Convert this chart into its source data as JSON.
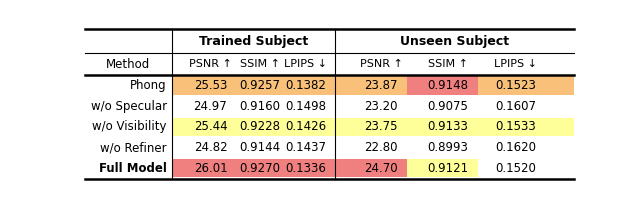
{
  "methods": [
    "Phong",
    "w/o Specular",
    "w/o Visibility",
    "w/o Refiner",
    "Full Model"
  ],
  "method_bold": [
    false,
    false,
    false,
    false,
    true
  ],
  "data": [
    [
      "25.53",
      "0.9257",
      "0.1382",
      "23.87",
      "0.9148",
      "0.1523"
    ],
    [
      "24.97",
      "0.9160",
      "0.1498",
      "23.20",
      "0.9075",
      "0.1607"
    ],
    [
      "25.44",
      "0.9228",
      "0.1426",
      "23.75",
      "0.9133",
      "0.1533"
    ],
    [
      "24.82",
      "0.9144",
      "0.1437",
      "22.80",
      "0.8993",
      "0.1620"
    ],
    [
      "26.01",
      "0.9270",
      "0.1336",
      "24.70",
      "0.9121",
      "0.1520"
    ]
  ],
  "cell_colors": [
    [
      "#f9c07a",
      "#f9c07a",
      "#f9c07a",
      "#f9c07a",
      "#f08080",
      "#f9c07a"
    ],
    [
      "#ffffff",
      "#ffffff",
      "#ffffff",
      "#ffffff",
      "#ffffff",
      "#ffffff"
    ],
    [
      "#ffff99",
      "#ffff99",
      "#ffff99",
      "#ffff99",
      "#ffff99",
      "#ffff99"
    ],
    [
      "#ffffff",
      "#ffffff",
      "#ffffff",
      "#ffffff",
      "#ffffff",
      "#ffffff"
    ],
    [
      "#f08080",
      "#f08080",
      "#f08080",
      "#f08080",
      "#ffff99",
      "#ffffff"
    ]
  ],
  "group1_label": "Trained Subject",
  "group2_label": "Unseen Subject",
  "subheaders": [
    "PSNR ↑",
    "SSIM ↑",
    "LPIPS ↓",
    "PSNR ↑",
    "SSIM ↑",
    "LPIPS ↓"
  ],
  "method_label": "Method",
  "bg_color": "#ffffff"
}
